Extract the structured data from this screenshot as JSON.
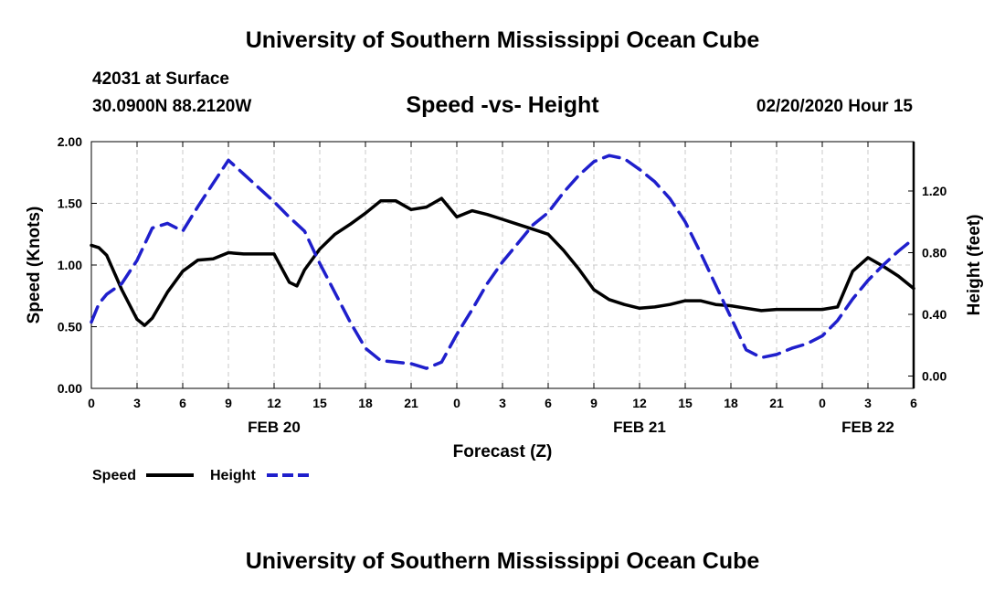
{
  "header": {
    "title_top": "University of Southern Mississippi Ocean Cube",
    "station": "42031 at Surface",
    "coords": "30.0900N 88.2120W",
    "chart_title": "Speed -vs- Height",
    "datetime": "02/20/2020 Hour 15"
  },
  "footer": {
    "title_bottom": "University of Southern Mississippi Ocean Cube"
  },
  "colors": {
    "speed": "#000000",
    "height": "#1f1fcc",
    "grid": "#c8c8c8"
  },
  "chart_data": {
    "type": "line",
    "title": "Speed -vs- Height",
    "xlabel": "Forecast (Z)",
    "ylabel": "Speed (Knots)",
    "y2label": "Height (feet)",
    "xlim": [
      0,
      54
    ],
    "ylim": [
      0,
      2.0
    ],
    "y2lim": [
      -0.08,
      1.52
    ],
    "grid": true,
    "legend_position": "bottom-left",
    "x_ticks": [
      0,
      3,
      6,
      9,
      12,
      15,
      18,
      21,
      24,
      27,
      30,
      33,
      36,
      39,
      42,
      45,
      48,
      51,
      54
    ],
    "x_tick_labels": [
      "0",
      "3",
      "6",
      "9",
      "12",
      "15",
      "18",
      "21",
      "0",
      "3",
      "6",
      "9",
      "12",
      "15",
      "18",
      "21",
      "0",
      "3",
      "6"
    ],
    "y_ticks": [
      0,
      0.5,
      1.0,
      1.5,
      2.0
    ],
    "y_tick_labels": [
      "0.00",
      "0.50",
      "1.00",
      "1.50",
      "2.00"
    ],
    "y2_ticks": [
      0,
      0.4,
      0.8,
      1.2
    ],
    "y2_tick_labels": [
      "0.00",
      "0.40",
      "0.80",
      "1.20"
    ],
    "date_labels": [
      {
        "x": 12,
        "label": "FEB 20"
      },
      {
        "x": 36,
        "label": "FEB 21"
      },
      {
        "x": 51,
        "label": "FEB 22"
      }
    ],
    "series": [
      {
        "name": "Speed",
        "axis": "left",
        "style": "solid",
        "x": [
          0,
          0.5,
          1,
          2,
          3,
          3.5,
          4,
          5,
          6,
          7,
          8,
          9,
          10,
          11,
          12,
          13,
          13.5,
          14,
          15,
          16,
          17,
          18,
          19,
          20,
          21,
          22,
          23,
          24,
          25,
          26,
          27,
          28,
          29,
          30,
          31,
          32,
          33,
          34,
          35,
          36,
          37,
          38,
          39,
          40,
          41,
          42,
          43,
          44,
          45,
          46,
          47,
          48,
          49,
          50,
          51,
          52,
          53,
          54
        ],
        "values": [
          1.16,
          1.14,
          1.08,
          0.8,
          0.56,
          0.51,
          0.57,
          0.78,
          0.95,
          1.04,
          1.05,
          1.1,
          1.09,
          1.09,
          1.09,
          0.86,
          0.83,
          0.96,
          1.13,
          1.25,
          1.33,
          1.42,
          1.52,
          1.52,
          1.45,
          1.47,
          1.54,
          1.39,
          1.44,
          1.41,
          1.37,
          1.33,
          1.29,
          1.25,
          1.12,
          0.97,
          0.8,
          0.72,
          0.68,
          0.65,
          0.66,
          0.68,
          0.71,
          0.71,
          0.68,
          0.67,
          0.65,
          0.63,
          0.64,
          0.64,
          0.64,
          0.64,
          0.66,
          0.95,
          1.06,
          0.99,
          0.91,
          0.81
        ]
      },
      {
        "name": "Height",
        "axis": "right",
        "style": "dashed",
        "x": [
          0,
          0.5,
          1,
          2,
          3,
          4,
          5,
          6,
          7,
          8,
          9,
          10,
          11,
          12,
          13,
          14,
          15,
          16,
          17,
          18,
          19,
          20,
          21,
          22,
          23,
          24,
          25,
          26,
          27,
          28,
          29,
          30,
          31,
          32,
          33,
          34,
          35,
          36,
          37,
          38,
          39,
          40,
          41,
          42,
          43,
          44,
          45,
          46,
          47,
          48,
          49,
          50,
          51,
          52,
          53,
          54
        ],
        "values": [
          0.35,
          0.47,
          0.53,
          0.6,
          0.75,
          0.96,
          0.99,
          0.94,
          1.1,
          1.25,
          1.4,
          1.31,
          1.22,
          1.13,
          1.03,
          0.94,
          0.73,
          0.54,
          0.35,
          0.18,
          0.1,
          0.09,
          0.08,
          0.05,
          0.09,
          0.27,
          0.43,
          0.6,
          0.74,
          0.86,
          0.98,
          1.06,
          1.19,
          1.3,
          1.39,
          1.43,
          1.41,
          1.34,
          1.26,
          1.15,
          1.0,
          0.8,
          0.59,
          0.38,
          0.17,
          0.12,
          0.14,
          0.18,
          0.21,
          0.26,
          0.36,
          0.5,
          0.62,
          0.72,
          0.81,
          0.89
        ]
      }
    ]
  }
}
